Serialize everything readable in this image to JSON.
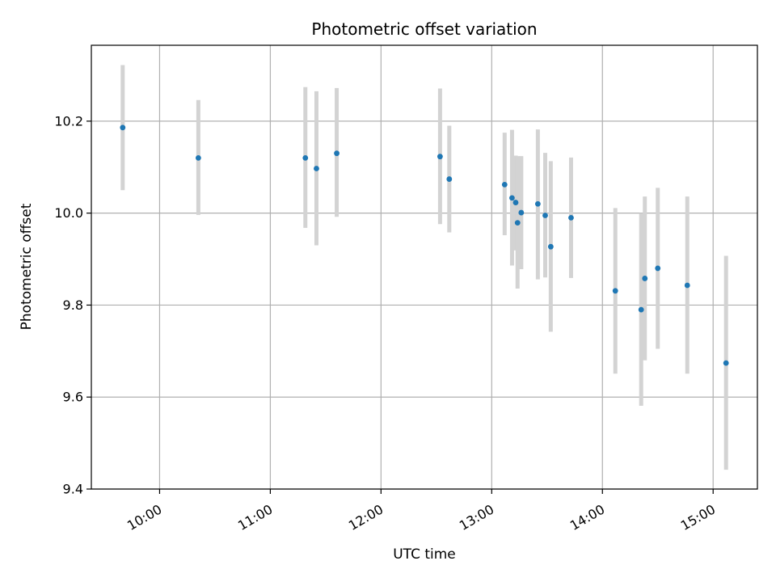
{
  "chart_data": {
    "type": "scatter",
    "title": "Photometric offset variation",
    "xlabel": "UTC time",
    "ylabel": "Photometric offset",
    "x_unit": "UTC time (HH:MM)",
    "xlim": [
      "09:23",
      "15:24"
    ],
    "ylim": [
      9.4,
      10.365
    ],
    "x_ticks": [
      "10:00",
      "11:00",
      "12:00",
      "13:00",
      "14:00",
      "15:00"
    ],
    "y_ticks": [
      "9.4",
      "9.6",
      "9.8",
      "10.0",
      "10.2"
    ],
    "grid": true,
    "legend": "none",
    "colors": {
      "point": "#1f77b4",
      "errorbar": "#d3d3d3",
      "grid": "#b0b0b0",
      "axes": "#000000"
    },
    "points": [
      {
        "x": "09:40",
        "y": 10.186,
        "ylow": 10.05,
        "yhigh": 10.322
      },
      {
        "x": "10:21",
        "y": 10.12,
        "ylow": 9.996,
        "yhigh": 10.246
      },
      {
        "x": "11:19",
        "y": 10.12,
        "ylow": 9.968,
        "yhigh": 10.274
      },
      {
        "x": "11:25",
        "y": 10.097,
        "ylow": 9.93,
        "yhigh": 10.265
      },
      {
        "x": "11:36",
        "y": 10.13,
        "ylow": 9.992,
        "yhigh": 10.272
      },
      {
        "x": "12:32",
        "y": 10.123,
        "ylow": 9.976,
        "yhigh": 10.271
      },
      {
        "x": "12:37",
        "y": 10.074,
        "ylow": 9.958,
        "yhigh": 10.19
      },
      {
        "x": "13:07",
        "y": 10.062,
        "ylow": 9.952,
        "yhigh": 10.175
      },
      {
        "x": "13:11",
        "y": 10.033,
        "ylow": 9.886,
        "yhigh": 10.181
      },
      {
        "x": "13:13",
        "y": 10.023,
        "ylow": 9.919,
        "yhigh": 10.125
      },
      {
        "x": "13:14",
        "y": 9.979,
        "ylow": 9.836,
        "yhigh": 10.124
      },
      {
        "x": "13:16",
        "y": 10.001,
        "ylow": 9.878,
        "yhigh": 10.124
      },
      {
        "x": "13:25",
        "y": 10.02,
        "ylow": 9.856,
        "yhigh": 10.182
      },
      {
        "x": "13:29",
        "y": 9.995,
        "ylow": 9.86,
        "yhigh": 10.131
      },
      {
        "x": "13:32",
        "y": 9.927,
        "ylow": 9.742,
        "yhigh": 10.113
      },
      {
        "x": "13:43",
        "y": 9.99,
        "ylow": 9.859,
        "yhigh": 10.121
      },
      {
        "x": "14:07",
        "y": 9.831,
        "ylow": 9.651,
        "yhigh": 10.011
      },
      {
        "x": "14:21",
        "y": 9.79,
        "ylow": 9.581,
        "yhigh": 10.0
      },
      {
        "x": "14:23",
        "y": 9.858,
        "ylow": 9.68,
        "yhigh": 10.036
      },
      {
        "x": "14:30",
        "y": 9.88,
        "ylow": 9.705,
        "yhigh": 10.055
      },
      {
        "x": "14:46",
        "y": 9.843,
        "ylow": 9.651,
        "yhigh": 10.036
      },
      {
        "x": "15:07",
        "y": 9.674,
        "ylow": 9.442,
        "yhigh": 9.907
      }
    ]
  }
}
